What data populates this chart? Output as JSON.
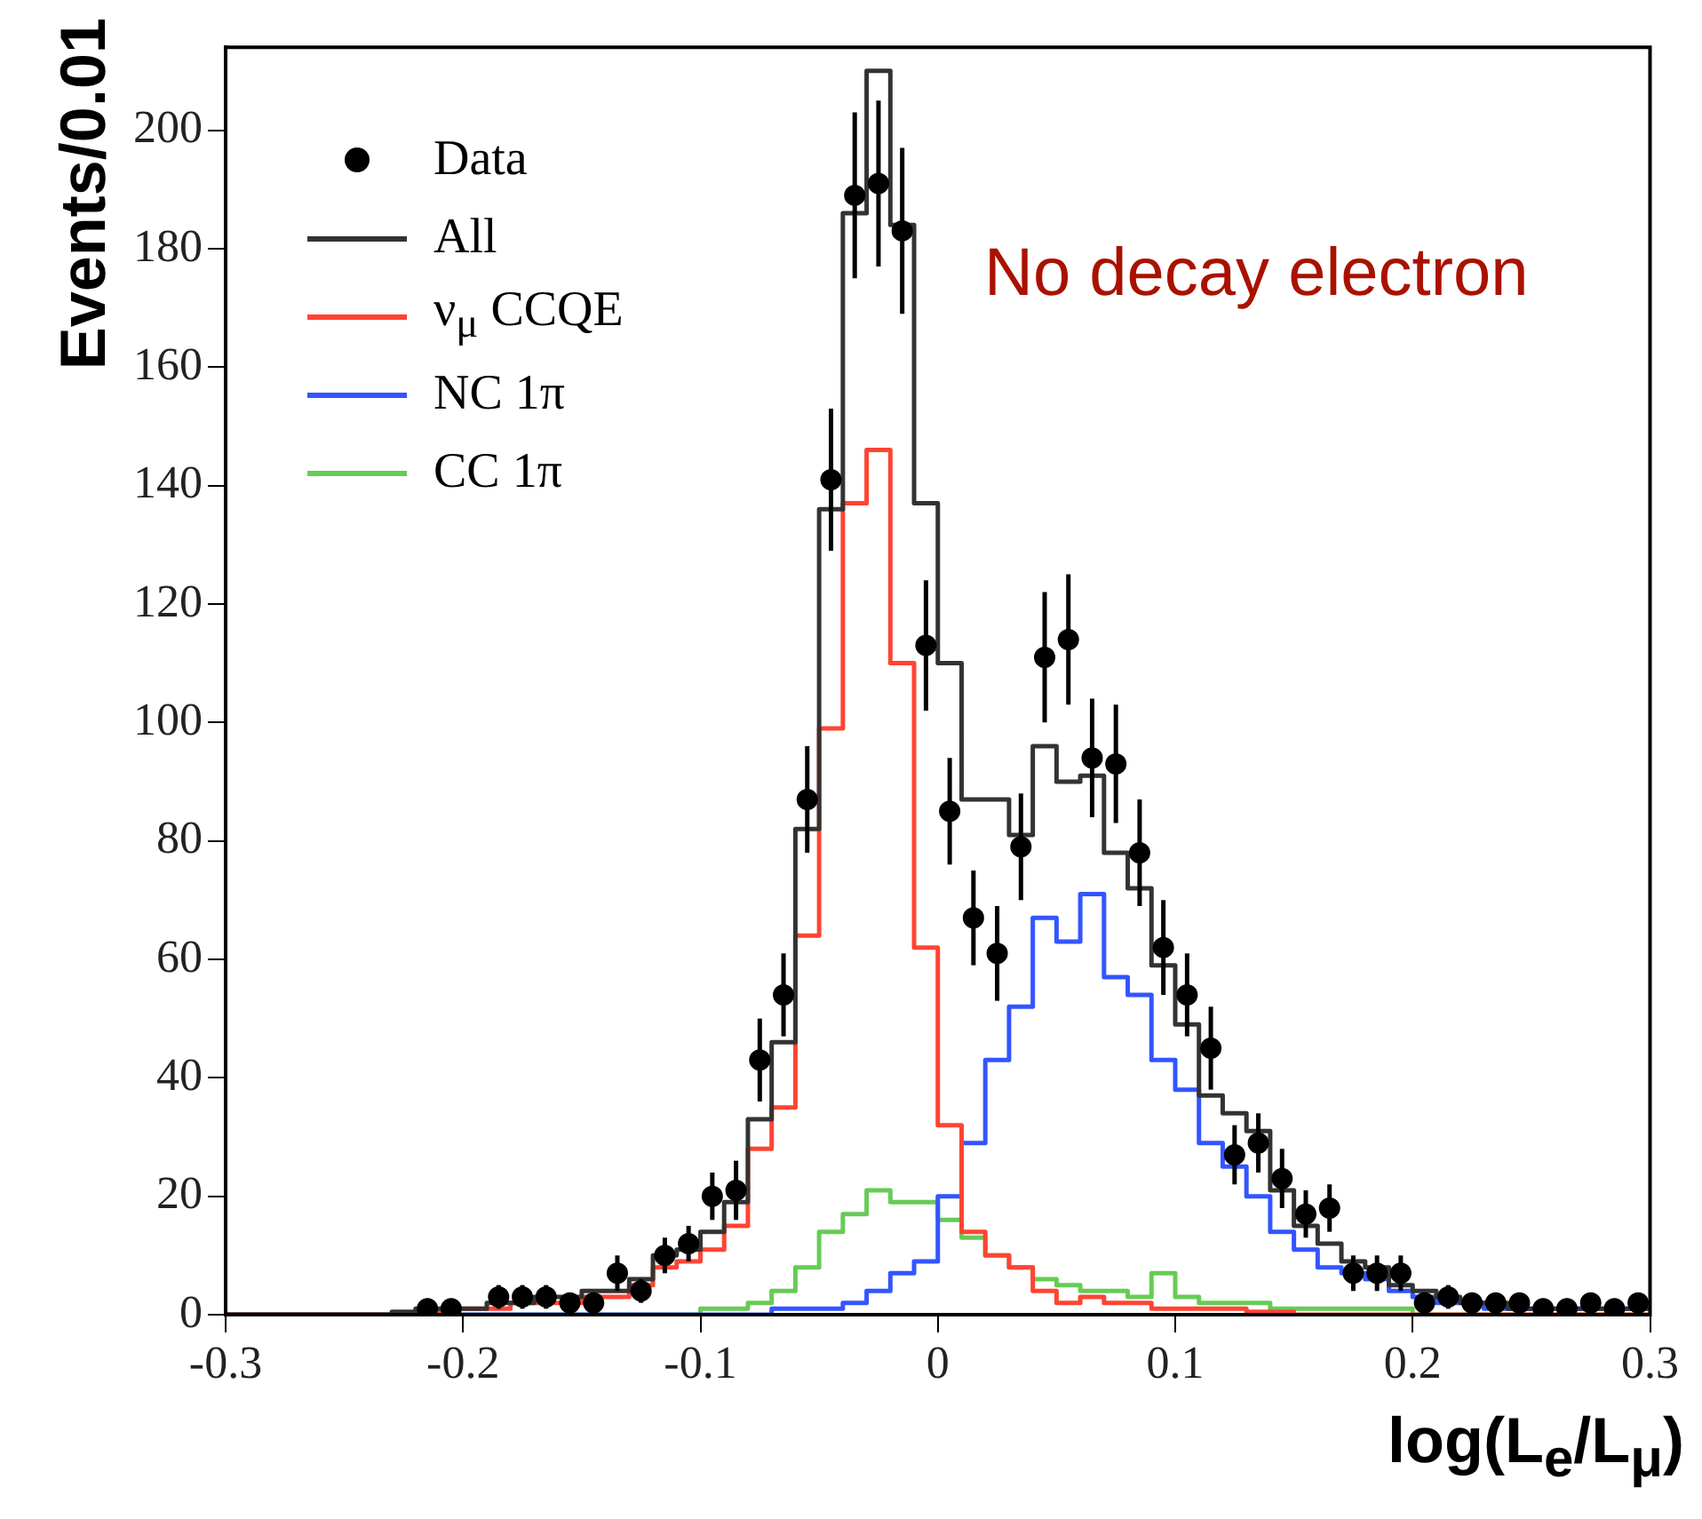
{
  "chart_data": {
    "type": "histogram",
    "xlabel": "log(L$_{e}$/L$_{μ}$)",
    "ylabel": "Events/0.01",
    "annotations": [
      "No decay electron"
    ],
    "bins": [
      -0.3,
      -0.29,
      -0.28,
      -0.27,
      -0.26,
      -0.25,
      -0.24,
      -0.23,
      -0.22,
      -0.21,
      -0.2,
      -0.19,
      -0.18,
      -0.17,
      -0.16,
      -0.15,
      -0.14,
      -0.13,
      -0.12,
      -0.11,
      -0.1,
      -0.09,
      -0.08,
      -0.07,
      -0.06,
      -0.05,
      -0.04,
      -0.03,
      -0.02,
      -0.01,
      0,
      0.01,
      0.02,
      0.03,
      0.04,
      0.05,
      0.06,
      0.07,
      0.08,
      0.09,
      0.1,
      0.11,
      0.12,
      0.13,
      0.14,
      0.15,
      0.16,
      0.17,
      0.18,
      0.19,
      0.2,
      0.21,
      0.22,
      0.23,
      0.24,
      0.25,
      0.26,
      0.27,
      0.28,
      0.29,
      0.3
    ],
    "series": [
      {
        "name": "Data",
        "type": "scatter",
        "color": "#000000",
        "x": [
          -0.215,
          -0.205,
          -0.185,
          -0.175,
          -0.165,
          -0.155,
          -0.145,
          -0.135,
          -0.125,
          -0.115,
          -0.105,
          -0.095,
          -0.085,
          -0.075,
          -0.065,
          -0.055,
          -0.045,
          -0.035,
          -0.025,
          -0.015,
          -0.005,
          0.005,
          0.015,
          0.025,
          0.035,
          0.045,
          0.055,
          0.065,
          0.075,
          0.085,
          0.095,
          0.105,
          0.115,
          0.125,
          0.135,
          0.145,
          0.155,
          0.165,
          0.175,
          0.185,
          0.195,
          0.205,
          0.215,
          0.225,
          0.235,
          0.245,
          0.255,
          0.265,
          0.275,
          0.285,
          0.295
        ],
        "values": [
          1,
          1,
          3,
          3,
          3,
          2,
          2,
          7,
          4,
          10,
          12,
          20,
          21,
          43,
          54,
          87,
          141,
          189,
          191,
          183,
          113,
          85,
          67,
          61,
          79,
          111,
          114,
          94,
          93,
          78,
          62,
          54,
          45,
          27,
          29,
          23,
          17,
          18,
          7,
          7,
          7,
          2,
          3,
          2,
          2,
          2,
          1,
          1,
          2,
          1,
          2
        ],
        "errors": [
          1,
          1,
          2,
          2,
          2,
          1,
          1,
          3,
          2,
          3,
          3,
          4,
          5,
          7,
          7,
          9,
          12,
          14,
          14,
          14,
          11,
          9,
          8,
          8,
          9,
          11,
          11,
          10,
          10,
          9,
          8,
          7,
          7,
          5,
          5,
          5,
          4,
          4,
          3,
          3,
          3,
          1,
          2,
          1,
          1,
          1,
          1,
          1,
          1,
          1,
          1
        ]
      },
      {
        "name": "All",
        "color": "#333333",
        "values": [
          0,
          0,
          0,
          0,
          0,
          0,
          0,
          0.5,
          1,
          1,
          1,
          2,
          2,
          3,
          3,
          4,
          4,
          6,
          10,
          11,
          14,
          19,
          33,
          46,
          82,
          136,
          186,
          210,
          184,
          137,
          110,
          87,
          87,
          81,
          96,
          90,
          91,
          78,
          72,
          59,
          49,
          37,
          34,
          31,
          21,
          15,
          12,
          9,
          8,
          5,
          4,
          3,
          2,
          2,
          1,
          1,
          1,
          1,
          1,
          1
        ]
      },
      {
        "name": "ν$_{μ}$ CCQE",
        "color": "#ff4433",
        "values": [
          0,
          0,
          0,
          0,
          0,
          0,
          0,
          0,
          0.5,
          1,
          1,
          1,
          2,
          2,
          2,
          3,
          3,
          5,
          8,
          9,
          11,
          15,
          28,
          35,
          64,
          99,
          137,
          146,
          110,
          62,
          32,
          14,
          10,
          8,
          4,
          2,
          3,
          2,
          2,
          1,
          1,
          1,
          1,
          0.5,
          0.5,
          0,
          0,
          0,
          0,
          0,
          0,
          0,
          0,
          0,
          0,
          0,
          0,
          0,
          0,
          0
        ]
      },
      {
        "name": "NC 1π",
        "color": "#3355ff",
        "values": [
          0,
          0,
          0,
          0,
          0,
          0,
          0,
          0,
          0,
          0,
          0,
          0,
          0,
          0,
          0,
          0,
          0,
          0,
          0,
          0,
          0,
          0,
          0,
          1,
          1,
          1,
          2,
          4,
          7,
          9,
          20,
          29,
          43,
          52,
          67,
          63,
          71,
          57,
          54,
          43,
          38,
          29,
          25,
          20,
          14,
          11,
          8,
          7,
          6,
          4,
          3,
          2,
          2,
          1,
          1,
          1,
          1,
          1,
          1,
          1
        ]
      },
      {
        "name": "CC 1π",
        "color": "#66cc55",
        "values": [
          0,
          0,
          0,
          0,
          0,
          0,
          0,
          0,
          0,
          0,
          0,
          0,
          0,
          0,
          0,
          0,
          0,
          0,
          0,
          0,
          1,
          1,
          2,
          4,
          8,
          14,
          17,
          21,
          19,
          19,
          16,
          13,
          10,
          8,
          6,
          5,
          4,
          4,
          3,
          7,
          3,
          2,
          2,
          2,
          1,
          1,
          1,
          1,
          1,
          1,
          0,
          0,
          0,
          0,
          0,
          0,
          0,
          0,
          0,
          0
        ]
      }
    ],
    "marker": "circle",
    "legend": "top left",
    "grid": false,
    "xlim": [
      -0.3,
      0.3
    ],
    "xticks": [
      -0.3,
      -0.2,
      -0.1,
      0,
      0.1,
      0.2,
      0.3
    ],
    "ylim": [
      0,
      214
    ],
    "yticks": [
      0,
      20,
      40,
      60,
      80,
      100,
      120,
      140,
      160,
      180,
      200
    ]
  }
}
